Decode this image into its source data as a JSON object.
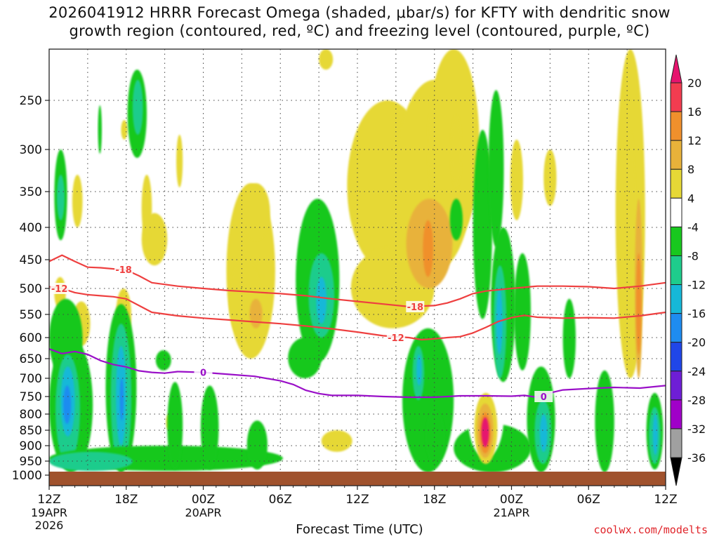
{
  "chart_data": {
    "type": "heatmap",
    "title_line1": "2026041912 HRRR Forecast Omega (shaded, μbar/s) for KFTY with dendritic snow",
    "title_line2": "growth region (contoured, red, ºC) and freezing level (contoured, purple, ºC)",
    "xlabel": "Forecast Time (UTC)",
    "credit": "coolwx.com/modelts",
    "x_range_hours": [
      0,
      48
    ],
    "y_range_mb": [
      1000,
      200
    ],
    "y_ticks": [
      250,
      300,
      350,
      400,
      450,
      500,
      550,
      600,
      650,
      700,
      750,
      800,
      850,
      900,
      950,
      1000
    ],
    "x_ticks": [
      {
        "hour": 0,
        "label": "12Z",
        "sub1": "19APR",
        "sub2": "2026"
      },
      {
        "hour": 6,
        "label": "18Z",
        "sub1": "",
        "sub2": ""
      },
      {
        "hour": 12,
        "label": "00Z",
        "sub1": "20APR",
        "sub2": ""
      },
      {
        "hour": 18,
        "label": "06Z",
        "sub1": "",
        "sub2": ""
      },
      {
        "hour": 24,
        "label": "12Z",
        "sub1": "",
        "sub2": ""
      },
      {
        "hour": 30,
        "label": "18Z",
        "sub1": "",
        "sub2": ""
      },
      {
        "hour": 36,
        "label": "00Z",
        "sub1": "21APR",
        "sub2": ""
      },
      {
        "hour": 42,
        "label": "06Z",
        "sub1": "",
        "sub2": ""
      },
      {
        "hour": 48,
        "label": "12Z",
        "sub1": "",
        "sub2": ""
      }
    ],
    "colorbar": {
      "labels": [
        "20",
        "16",
        "12",
        "8",
        "4",
        "-4",
        "-8",
        "-12",
        "-16",
        "-20",
        "-24",
        "-28",
        "-32",
        "-36"
      ],
      "bins": [
        {
          "lo": 16,
          "hi": 20,
          "color": "#f23c50"
        },
        {
          "lo": 12,
          "hi": 16,
          "color": "#f0902c"
        },
        {
          "lo": 8,
          "hi": 12,
          "color": "#e8b23a"
        },
        {
          "lo": 4,
          "hi": 8,
          "color": "#e6d836"
        },
        {
          "lo": -4,
          "hi": 4,
          "color": "#ffffff"
        },
        {
          "lo": -8,
          "hi": -4,
          "color": "#18c81e"
        },
        {
          "lo": -12,
          "hi": -8,
          "color": "#1ecc8c"
        },
        {
          "lo": -16,
          "hi": -12,
          "color": "#16b8d8"
        },
        {
          "lo": -20,
          "hi": -16,
          "color": "#1e8cf0"
        },
        {
          "lo": -24,
          "hi": -20,
          "color": "#2046e8"
        },
        {
          "lo": -28,
          "hi": -24,
          "color": "#6e1ed6"
        },
        {
          "lo": -32,
          "hi": -28,
          "color": "#a000c8"
        },
        {
          "lo": -36,
          "hi": -32,
          "color": "#a0a0a0"
        }
      ],
      "top_color": "#e6146e",
      "bottom_color": "#000000"
    },
    "series": [
      {
        "name": "-18 C isotherm",
        "color": "#ee4040",
        "label": "-18",
        "label_points": [
          [
            5.8,
            467
          ],
          [
            28.5,
            535
          ]
        ],
        "points": [
          [
            0,
            453
          ],
          [
            1,
            443
          ],
          [
            2,
            453
          ],
          [
            3,
            463
          ],
          [
            4,
            464
          ],
          [
            5,
            466
          ],
          [
            6,
            468
          ],
          [
            7,
            478
          ],
          [
            8,
            490
          ],
          [
            10,
            496
          ],
          [
            12,
            500
          ],
          [
            14,
            504
          ],
          [
            16,
            507
          ],
          [
            18,
            510
          ],
          [
            20,
            514
          ],
          [
            22,
            520
          ],
          [
            24,
            525
          ],
          [
            26,
            530
          ],
          [
            28,
            535
          ],
          [
            30,
            533
          ],
          [
            31,
            528
          ],
          [
            32,
            520
          ],
          [
            33,
            510
          ],
          [
            34,
            505
          ],
          [
            36,
            500
          ],
          [
            38,
            496
          ],
          [
            40,
            496
          ],
          [
            42,
            497
          ],
          [
            44,
            500
          ],
          [
            46,
            496
          ],
          [
            48,
            490
          ]
        ]
      },
      {
        "name": "-12 C isotherm",
        "color": "#ee4040",
        "label": "-12",
        "label_points": [
          [
            0.8,
            500
          ],
          [
            27,
            600
          ]
        ],
        "points": [
          [
            0,
            497
          ],
          [
            1,
            500
          ],
          [
            2,
            508
          ],
          [
            3,
            512
          ],
          [
            4,
            514
          ],
          [
            5,
            516
          ],
          [
            6,
            520
          ],
          [
            7,
            533
          ],
          [
            8,
            546
          ],
          [
            10,
            553
          ],
          [
            12,
            558
          ],
          [
            14,
            562
          ],
          [
            16,
            566
          ],
          [
            18,
            570
          ],
          [
            20,
            575
          ],
          [
            22,
            581
          ],
          [
            24,
            588
          ],
          [
            26,
            596
          ],
          [
            28,
            600
          ],
          [
            29,
            605
          ],
          [
            30,
            603
          ],
          [
            31,
            600
          ],
          [
            32,
            598
          ],
          [
            33,
            590
          ],
          [
            34,
            578
          ],
          [
            35,
            565
          ],
          [
            36,
            557
          ],
          [
            37,
            552
          ],
          [
            38,
            556
          ],
          [
            40,
            558
          ],
          [
            42,
            557
          ],
          [
            44,
            558
          ],
          [
            46,
            553
          ],
          [
            48,
            546
          ]
        ]
      },
      {
        "name": "0 C freezing level",
        "color": "#9a10c8",
        "label": "0",
        "label_points": [
          [
            12,
            685
          ],
          [
            38.5,
            750
          ]
        ],
        "points": [
          [
            0,
            627
          ],
          [
            1,
            638
          ],
          [
            2,
            633
          ],
          [
            3,
            640
          ],
          [
            4,
            655
          ],
          [
            5,
            665
          ],
          [
            6,
            671
          ],
          [
            7,
            681
          ],
          [
            8,
            685
          ],
          [
            9,
            687
          ],
          [
            10,
            683
          ],
          [
            12,
            685
          ],
          [
            14,
            690
          ],
          [
            16,
            695
          ],
          [
            18,
            707
          ],
          [
            19,
            717
          ],
          [
            20,
            733
          ],
          [
            21,
            742
          ],
          [
            22,
            747
          ],
          [
            24,
            747
          ],
          [
            26,
            750
          ],
          [
            28,
            752
          ],
          [
            30,
            752
          ],
          [
            32,
            748
          ],
          [
            34,
            748
          ],
          [
            36,
            749
          ],
          [
            37,
            747
          ],
          [
            38,
            752
          ],
          [
            39,
            740
          ],
          [
            40,
            732
          ],
          [
            42,
            728
          ],
          [
            44,
            725
          ],
          [
            46,
            727
          ],
          [
            48,
            720
          ]
        ]
      }
    ],
    "blobs": [
      {
        "color": "#e6d836",
        "x": 23.2,
        "x2": 29.5,
        "y": 250,
        "y2": 470
      },
      {
        "color": "#e6d836",
        "x": 27,
        "x2": 33,
        "y": 230,
        "y2": 470
      },
      {
        "color": "#e6d836",
        "x": 29.5,
        "x2": 33.5,
        "y": 200,
        "y2": 420
      },
      {
        "color": "#e6d836",
        "x": 23.5,
        "x2": 30,
        "y": 430,
        "y2": 580
      },
      {
        "color": "#e8b23a",
        "x": 27.8,
        "x2": 31.4,
        "y": 360,
        "y2": 500
      },
      {
        "color": "#f0902c",
        "x": 29.1,
        "x2": 29.9,
        "y": 390,
        "y2": 480
      },
      {
        "color": "#e6d836",
        "x": 31.3,
        "x2": 32.1,
        "y": 265,
        "y2": 345
      },
      {
        "color": "#e6d836",
        "x": 33.2,
        "x2": 34.6,
        "y": 300,
        "y2": 420
      },
      {
        "color": "#e6d836",
        "x": 35.9,
        "x2": 36.9,
        "y": 290,
        "y2": 390
      },
      {
        "color": "#e6d836",
        "x": 38.5,
        "x2": 39.5,
        "y": 300,
        "y2": 370
      },
      {
        "color": "#e6d836",
        "x": 13.8,
        "x2": 17.6,
        "y": 340,
        "y2": 650
      },
      {
        "color": "#e6d836",
        "x": 15,
        "x2": 17.2,
        "y": 340,
        "y2": 420
      },
      {
        "color": "#e6d836",
        "x": 14,
        "x2": 16.5,
        "y": 450,
        "y2": 610
      },
      {
        "color": "#e8b23a",
        "x": 15.6,
        "x2": 16.6,
        "y": 520,
        "y2": 580
      },
      {
        "color": "#e6d836",
        "x": 7.2,
        "x2": 9.2,
        "y": 380,
        "y2": 460
      },
      {
        "color": "#e6d836",
        "x": 7.2,
        "x2": 8.0,
        "y": 330,
        "y2": 420
      },
      {
        "color": "#e6d836",
        "x": 5.6,
        "x2": 6.1,
        "y": 270,
        "y2": 290
      },
      {
        "color": "#e6d836",
        "x": 9.9,
        "x2": 10.4,
        "y": 285,
        "y2": 345
      },
      {
        "color": "#e6d836",
        "x": 1.8,
        "x2": 2.6,
        "y": 330,
        "y2": 400
      },
      {
        "color": "#e6d836",
        "x": 0.4,
        "x2": 1.3,
        "y": 480,
        "y2": 540
      },
      {
        "color": "#e6d836",
        "x": 1.8,
        "x2": 3.2,
        "y": 525,
        "y2": 620
      },
      {
        "color": "#e6d836",
        "x": 5.2,
        "x2": 6.4,
        "y": 500,
        "y2": 610
      },
      {
        "color": "#e6d836",
        "x": 21.2,
        "x2": 23.6,
        "y": 850,
        "y2": 920
      },
      {
        "color": "#e6d836",
        "x": 9.1,
        "x2": 9.5,
        "y": 800,
        "y2": 850
      },
      {
        "color": "#e6d836",
        "x": 21,
        "x2": 22.1,
        "y": 200,
        "y2": 220
      },
      {
        "color": "#e6d836",
        "x": 44.1,
        "x2": 46.4,
        "y": 200,
        "y2": 700
      },
      {
        "color": "#e6d836",
        "x": 44.8,
        "x2": 45.6,
        "y": 280,
        "y2": 470
      },
      {
        "color": "#e8b23a",
        "x": 45.6,
        "x2": 46.2,
        "y": 360,
        "y2": 700
      },
      {
        "color": "#f0902c",
        "x": 45.7,
        "x2": 46.1,
        "y": 440,
        "y2": 640
      },
      {
        "color": "#e6d836",
        "x": 32.9,
        "x2": 35.1,
        "y": 740,
        "y2": 980
      },
      {
        "color": "#e8b23a",
        "x": 33.3,
        "x2": 34.6,
        "y": 760,
        "y2": 950
      },
      {
        "color": "#f0902c",
        "x": 33.5,
        "x2": 34.3,
        "y": 790,
        "y2": 930
      },
      {
        "color": "#e6146e",
        "x": 33.6,
        "x2": 34.2,
        "y": 810,
        "y2": 910
      },
      {
        "color": "#18c81e",
        "x": 0.4,
        "x2": 1.4,
        "y": 300,
        "y2": 420
      },
      {
        "color": "#1ecc8c",
        "x": 0.6,
        "x2": 1.2,
        "y": 330,
        "y2": 390
      },
      {
        "color": "#18c81e",
        "x": 3.8,
        "x2": 4.1,
        "y": 255,
        "y2": 305
      },
      {
        "color": "#18c81e",
        "x": 6.1,
        "x2": 7.6,
        "y": 220,
        "y2": 310
      },
      {
        "color": "#1ecc8c",
        "x": 6.5,
        "x2": 7.3,
        "y": 230,
        "y2": 285
      },
      {
        "color": "#18c81e",
        "x": 0,
        "x2": 3.4,
        "y": 600,
        "y2": 990
      },
      {
        "color": "#18c81e",
        "x": 0,
        "x2": 2.6,
        "y": 520,
        "y2": 700
      },
      {
        "color": "#1ecc8c",
        "x": 0.5,
        "x2": 2.4,
        "y": 640,
        "y2": 960
      },
      {
        "color": "#16b8d8",
        "x": 0.9,
        "x2": 2.0,
        "y": 670,
        "y2": 870
      },
      {
        "color": "#1e8cf0",
        "x": 1.1,
        "x2": 1.7,
        "y": 720,
        "y2": 830
      },
      {
        "color": "#18c81e",
        "x": 4.4,
        "x2": 6.8,
        "y": 530,
        "y2": 990
      },
      {
        "color": "#1ecc8c",
        "x": 4.8,
        "x2": 6.4,
        "y": 570,
        "y2": 980
      },
      {
        "color": "#16b8d8",
        "x": 5.2,
        "x2": 6.0,
        "y": 620,
        "y2": 900
      },
      {
        "color": "#1e8cf0",
        "x": 5.5,
        "x2": 5.8,
        "y": 700,
        "y2": 820
      },
      {
        "color": "#18c81e",
        "x": 0,
        "x2": 18.2,
        "y": 900,
        "y2": 985
      },
      {
        "color": "#1ecc8c",
        "x": 0,
        "x2": 6.5,
        "y": 920,
        "y2": 985
      },
      {
        "color": "#18c81e",
        "x": 8.3,
        "x2": 9.5,
        "y": 630,
        "y2": 680
      },
      {
        "color": "#18c81e",
        "x": 9.2,
        "x2": 10.4,
        "y": 710,
        "y2": 980
      },
      {
        "color": "#18c81e",
        "x": 11.8,
        "x2": 13.2,
        "y": 720,
        "y2": 980
      },
      {
        "color": "#18c81e",
        "x": 15.4,
        "x2": 17.0,
        "y": 820,
        "y2": 980
      },
      {
        "color": "#18c81e",
        "x": 19.2,
        "x2": 22.6,
        "y": 360,
        "y2": 660
      },
      {
        "color": "#18c81e",
        "x": 18.6,
        "x2": 21.2,
        "y": 600,
        "y2": 700
      },
      {
        "color": "#1ecc8c",
        "x": 20.2,
        "x2": 22.2,
        "y": 440,
        "y2": 600
      },
      {
        "color": "#16b8d8",
        "x": 20.8,
        "x2": 21.6,
        "y": 480,
        "y2": 570
      },
      {
        "color": "#18c81e",
        "x": 31.2,
        "x2": 32.2,
        "y": 360,
        "y2": 420
      },
      {
        "color": "#18c81e",
        "x": 33,
        "x2": 34.5,
        "y": 280,
        "y2": 560
      },
      {
        "color": "#18c81e",
        "x": 34.2,
        "x2": 35.4,
        "y": 240,
        "y2": 430
      },
      {
        "color": "#18c81e",
        "x": 34.4,
        "x2": 36.3,
        "y": 400,
        "y2": 710
      },
      {
        "color": "#1ecc8c",
        "x": 34.6,
        "x2": 35.6,
        "y": 460,
        "y2": 700
      },
      {
        "color": "#16b8d8",
        "x": 34.8,
        "x2": 35.3,
        "y": 500,
        "y2": 640
      },
      {
        "color": "#18c81e",
        "x": 27.5,
        "x2": 31.5,
        "y": 580,
        "y2": 990
      },
      {
        "color": "#1ecc8c",
        "x": 28.3,
        "x2": 29.2,
        "y": 620,
        "y2": 760
      },
      {
        "color": "#16b8d8",
        "x": 28.6,
        "x2": 29.0,
        "y": 640,
        "y2": 720
      },
      {
        "color": "#18c81e",
        "x": 29.3,
        "x2": 30.8,
        "y": 790,
        "y2": 960
      },
      {
        "color": "#18c81e",
        "x": 31.5,
        "x2": 37.5,
        "y": 830,
        "y2": 990
      },
      {
        "color": "#18c81e",
        "x": 36.2,
        "x2": 37.5,
        "y": 440,
        "y2": 680
      },
      {
        "color": "#18c81e",
        "x": 37.2,
        "x2": 39.4,
        "y": 670,
        "y2": 990
      },
      {
        "color": "#1ecc8c",
        "x": 37.8,
        "x2": 39.1,
        "y": 760,
        "y2": 960
      },
      {
        "color": "#16b8d8",
        "x": 38.2,
        "x2": 38.8,
        "y": 800,
        "y2": 920
      },
      {
        "color": "#18c81e",
        "x": 40,
        "x2": 41.0,
        "y": 520,
        "y2": 700
      },
      {
        "color": "#18c81e",
        "x": 42.5,
        "x2": 44.0,
        "y": 680,
        "y2": 990
      },
      {
        "color": "#18c81e",
        "x": 46.5,
        "x2": 47.8,
        "y": 740,
        "y2": 980
      },
      {
        "color": "#1ecc8c",
        "x": 46.7,
        "x2": 47.6,
        "y": 780,
        "y2": 960
      },
      {
        "color": "#16b8d8",
        "x": 47,
        "x2": 47.4,
        "y": 800,
        "y2": 930
      },
      {
        "color": "#ffffff",
        "x": 32.6,
        "x2": 35.4,
        "y": 690,
        "y2": 940
      },
      {
        "color": "#e6d836",
        "x": 33.1,
        "x2": 34.9,
        "y": 740,
        "y2": 960
      },
      {
        "color": "#e8b23a",
        "x": 33.3,
        "x2": 34.6,
        "y": 770,
        "y2": 940
      },
      {
        "color": "#f0902c",
        "x": 33.5,
        "x2": 34.4,
        "y": 795,
        "y2": 925
      },
      {
        "color": "#e6146e",
        "x": 33.65,
        "x2": 34.25,
        "y": 810,
        "y2": 905
      }
    ]
  }
}
